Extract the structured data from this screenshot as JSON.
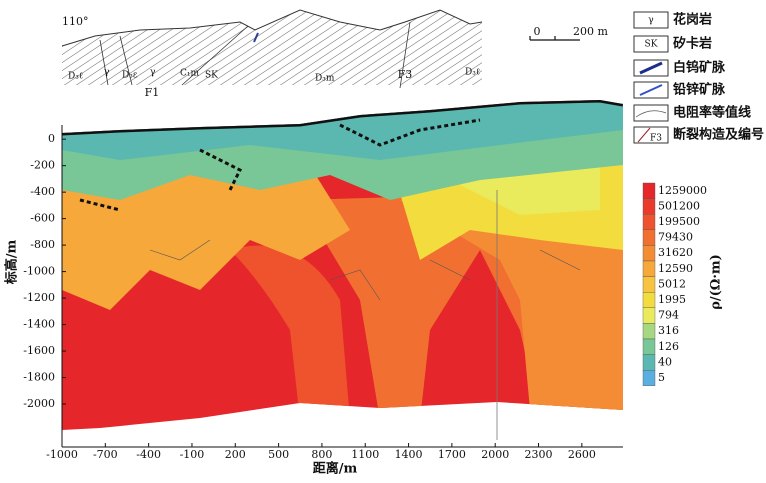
{
  "chart_data": {
    "type": "contour",
    "x_label": "距离/m",
    "y_label": "标高/m",
    "xlim": [
      -1000,
      2885
    ],
    "ylim": [
      -2320,
      110
    ],
    "xticks": [
      -1000,
      -700,
      -400,
      -100,
      200,
      500,
      800,
      1100,
      1400,
      1700,
      2000,
      2300,
      2600
    ],
    "yticks": [
      0,
      -200,
      -400,
      -600,
      -800,
      -1000,
      -1200,
      -1400,
      -1600,
      -1800,
      -2000
    ],
    "colorbar": {
      "label": "ρ/(Ω·m)",
      "levels": [
        1259000,
        501200,
        199500,
        79430,
        31620,
        12590,
        5012,
        1995,
        794,
        316,
        126,
        40,
        5
      ],
      "colors": [
        "#e5262b",
        "#ea3a2c",
        "#ee532e",
        "#f17031",
        "#f48c35",
        "#f6a83a",
        "#f8c33f",
        "#f3dc3e",
        "#e9ea5c",
        "#a7d77f",
        "#79c696",
        "#5ab8b0",
        "#5aaee0"
      ]
    },
    "legend": [
      {
        "symbol": "γ",
        "label": "花岗岩"
      },
      {
        "symbol": "SK",
        "label": "矽卡岩"
      },
      {
        "symbol": "",
        "label": "白钨矿脉"
      },
      {
        "symbol": "",
        "label": "铅锌矿脉"
      },
      {
        "symbol": "",
        "label": "电阻率等值线"
      },
      {
        "symbol": "F3",
        "label": "断裂构造及编号"
      }
    ],
    "section": {
      "azimuth": "110°",
      "scale": [
        "0",
        "200 m"
      ],
      "units": [
        "D₃ℓ",
        "γ",
        "D₃ε",
        "γ",
        "C₁m",
        "SK",
        "D₃m",
        "D₃ℓ"
      ],
      "faults": [
        "F1",
        "F3"
      ]
    }
  }
}
